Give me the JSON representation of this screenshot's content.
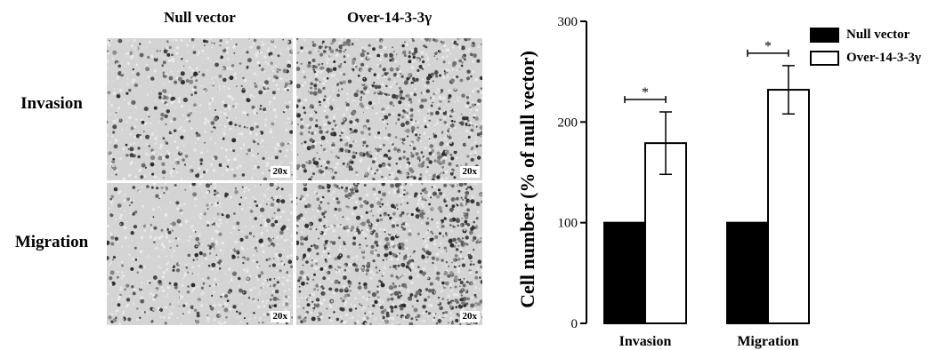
{
  "micrographs": {
    "columns": [
      "Null vector",
      "Over-14-3-3γ"
    ],
    "rows": [
      "Invasion",
      "Migration"
    ],
    "magnification": "20x"
  },
  "chart_data": {
    "type": "bar",
    "categories": [
      "Invasion",
      "Migration"
    ],
    "series": [
      {
        "name": "Null vector",
        "values": [
          100,
          100
        ],
        "color": "#000000"
      },
      {
        "name": "Over-14-3-3γ",
        "values": [
          179,
          232
        ],
        "errors": [
          31,
          24
        ],
        "color": "#ffffff"
      }
    ],
    "ylabel": "Cell number (% of null vector)",
    "ylim": [
      0,
      300
    ],
    "yticks": [
      0,
      100,
      200,
      300
    ],
    "significance": [
      "*",
      "*"
    ],
    "legend_position": "top-right"
  }
}
